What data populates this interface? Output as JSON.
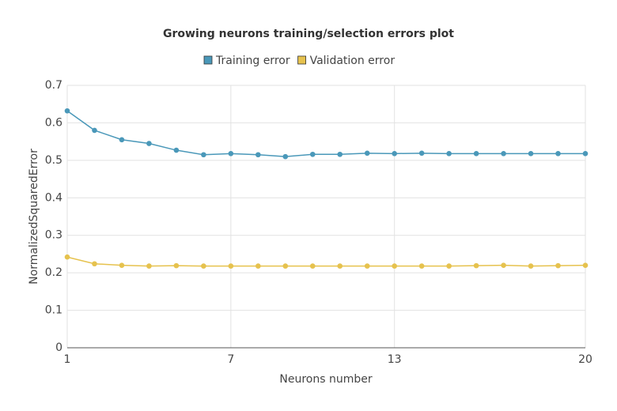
{
  "chart_data": {
    "type": "line",
    "title": "Growing neurons training/selection errors plot",
    "x_label": "Neurons number",
    "y_label": "NormalizedSquaredError",
    "x": [
      1,
      2,
      3,
      4,
      5,
      6,
      7,
      8,
      9,
      10,
      11,
      12,
      13,
      14,
      15,
      16,
      17,
      18,
      19,
      20
    ],
    "series": [
      {
        "name": "Training error",
        "color": "#4a98b9",
        "values": [
          0.632,
          0.58,
          0.555,
          0.545,
          0.527,
          0.515,
          0.518,
          0.515,
          0.51,
          0.516,
          0.516,
          0.519,
          0.518,
          0.519,
          0.518,
          0.518,
          0.518,
          0.518,
          0.518,
          0.518
        ]
      },
      {
        "name": "Validation error",
        "color": "#e6c24e",
        "values": [
          0.242,
          0.224,
          0.22,
          0.218,
          0.219,
          0.218,
          0.218,
          0.218,
          0.218,
          0.218,
          0.218,
          0.218,
          0.218,
          0.218,
          0.218,
          0.219,
          0.22,
          0.218,
          0.219,
          0.22
        ]
      }
    ],
    "xlim": [
      1,
      20
    ],
    "xticks": [
      1,
      7,
      13,
      20
    ],
    "ylim": [
      0,
      0.7
    ],
    "yticks": [
      0,
      0.1,
      0.2,
      0.3,
      0.4,
      0.5,
      0.6,
      0.7
    ],
    "grid": true
  }
}
